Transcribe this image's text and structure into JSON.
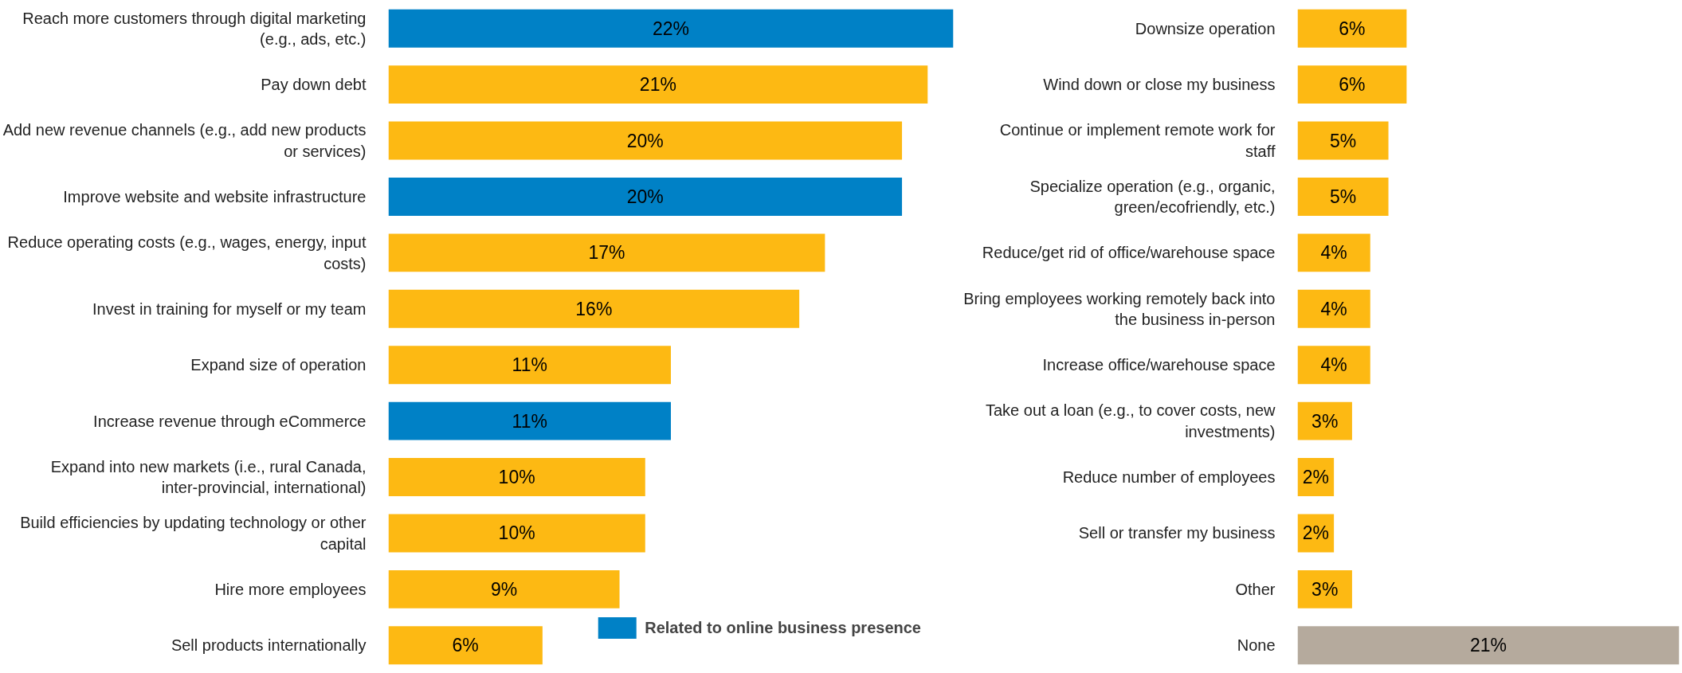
{
  "chart_data": [
    {
      "type": "bar",
      "orientation": "horizontal",
      "categories": [
        "Reach more customers through digital marketing (e.g., ads, etc.)",
        "Pay down debt",
        "Add new revenue channels (e.g., add new products or services)",
        "Improve website and website infrastructure",
        "Reduce operating costs (e.g., wages, energy, input costs)",
        "Invest in training for myself or my team",
        "Expand size of operation",
        "Increase revenue through eCommerce",
        "Expand into new markets (i.e., rural Canada, inter-provincial, international)",
        "Build efficiencies by updating technology or other capital",
        "Hire more employees",
        "Sell products internationally"
      ],
      "series": [
        {
          "color": "#fdb913",
          "values": [
            null,
            21,
            20,
            null,
            17,
            16,
            11,
            null,
            10,
            10,
            9,
            6
          ],
          "value_labels": [
            null,
            "21%",
            "20%",
            null,
            "17%",
            "16%",
            "11%",
            null,
            "10%",
            "10%",
            "9%",
            "6%"
          ]
        },
        {
          "name": "Related to online business presence",
          "color": "#0081c6",
          "values": [
            22,
            null,
            null,
            20,
            null,
            null,
            null,
            11,
            null,
            null,
            null,
            null
          ],
          "value_labels": [
            "22%",
            null,
            null,
            "20%",
            null,
            null,
            null,
            "11%",
            null,
            null,
            null,
            null
          ]
        }
      ],
      "xlim": [
        0,
        22
      ],
      "legend": "bottom right",
      "tick_labels": "y"
    },
    {
      "type": "bar",
      "orientation": "horizontal",
      "categories": [
        "Downsize operation",
        "Wind down or close my business",
        "Continue or implement remote work for staff",
        "Specialize operation (e.g., organic, green/ecofriendly, etc.)",
        "Reduce/get rid of office/warehouse space",
        "Bring employees working remotely back into the business in-person",
        "Increase office/warehouse space",
        "Take out a loan (e.g., to cover costs, new investments)",
        "Reduce number of employees",
        "Sell or transfer my business",
        "Other",
        "None"
      ],
      "values": [
        6,
        6,
        5,
        5,
        4,
        4,
        4,
        3,
        2,
        2,
        3,
        21
      ],
      "value_labels": [
        "6%",
        "6%",
        "5%",
        "5%",
        "4%",
        "4%",
        "4%",
        "3%",
        "2%",
        "2%",
        "3%",
        "21%"
      ],
      "colors": [
        "#fdb913",
        "#fdb913",
        "#fdb913",
        "#fdb913",
        "#fdb913",
        "#fdb913",
        "#fdb913",
        "#fdb913",
        "#fdb913",
        "#fdb913",
        "#fdb913",
        "#b5aa9d"
      ],
      "xlim": [
        0,
        21
      ],
      "tick_labels": "y"
    }
  ]
}
